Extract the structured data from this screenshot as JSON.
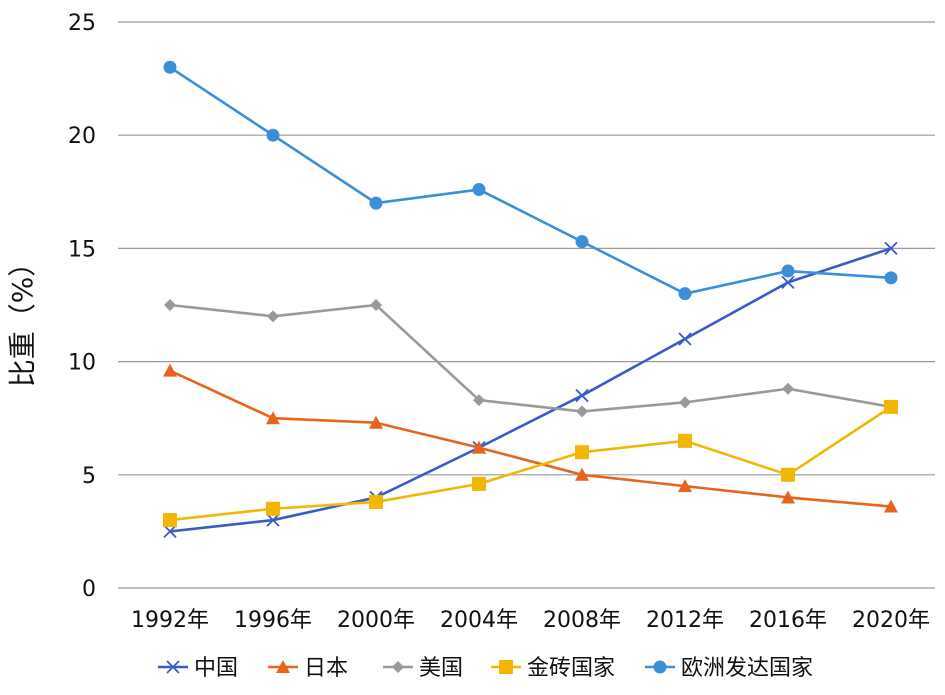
{
  "chart_data": {
    "type": "line",
    "title": "",
    "xlabel": "",
    "ylabel": "比重（%）",
    "ylim": [
      0,
      25
    ],
    "yticks": [
      0,
      5,
      10,
      15,
      20,
      25
    ],
    "grid": true,
    "legend_position": "bottom",
    "categories": [
      "1992年",
      "1996年",
      "2000年",
      "2004年",
      "2008年",
      "2012年",
      "2016年",
      "2020年"
    ],
    "series": [
      {
        "name": "中国",
        "marker": "x",
        "color": "#3a5bc7",
        "values": [
          2.5,
          3.0,
          4.0,
          6.2,
          8.5,
          11.0,
          13.5,
          15.0
        ]
      },
      {
        "name": "日本",
        "marker": "triangle",
        "color": "#e8641c",
        "values": [
          9.6,
          7.5,
          7.3,
          6.2,
          5.0,
          4.5,
          4.0,
          3.6
        ]
      },
      {
        "name": "美国",
        "marker": "diamond",
        "color": "#999999",
        "values": [
          12.5,
          12.0,
          12.5,
          8.3,
          7.8,
          8.2,
          8.8,
          8.0
        ]
      },
      {
        "name": "金砖国家",
        "marker": "square",
        "color": "#f2b705",
        "values": [
          3.0,
          3.5,
          3.8,
          4.6,
          6.0,
          6.5,
          5.0,
          8.0
        ]
      },
      {
        "name": "欧洲发达国家",
        "marker": "circle",
        "color": "#3a8fd6",
        "values": [
          23.0,
          20.0,
          17.0,
          17.6,
          15.3,
          13.0,
          14.0,
          13.7
        ]
      }
    ]
  }
}
